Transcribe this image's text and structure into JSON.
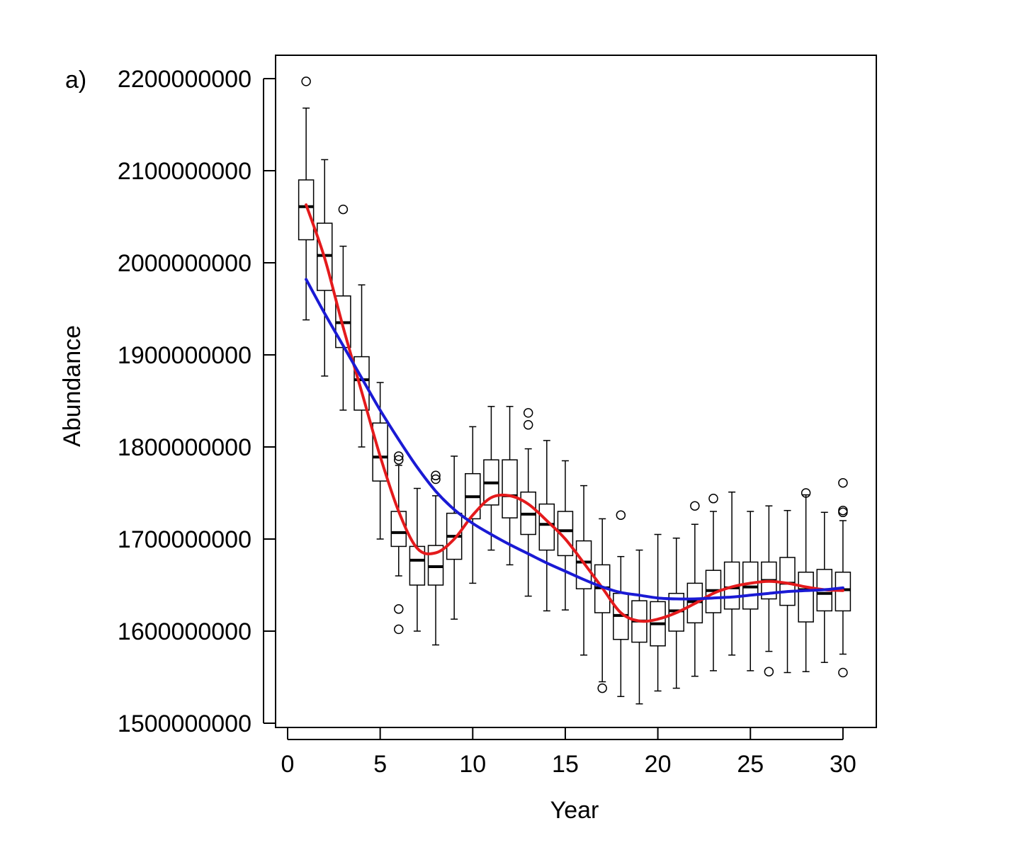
{
  "chart_data": {
    "type": "boxplot",
    "panel_label": "a)",
    "xlabel": "Year",
    "ylabel": "Abundance",
    "xlim": [
      -0.5,
      31.7
    ],
    "ylim": [
      1500000000,
      2200000000
    ],
    "x_ticks": [
      0,
      5,
      10,
      15,
      20,
      25,
      30
    ],
    "x_tick_labels": [
      "0",
      "5",
      "10",
      "15",
      "20",
      "25",
      "30"
    ],
    "y_ticks": [
      1500000000,
      1600000000,
      1700000000,
      1800000000,
      1900000000,
      2000000000,
      2100000000,
      2200000000
    ],
    "y_tick_labels": [
      "1500000000",
      "1600000000",
      "1700000000",
      "1800000000",
      "1900000000",
      "2000000000",
      "2100000000",
      "2200000000"
    ],
    "grid": false,
    "legend": "none",
    "boxes": [
      {
        "x": 1,
        "whisker_low": 1938000000,
        "q1": 2025000000,
        "median": 2061000000,
        "q3": 2090000000,
        "whisker_high": 2168000000,
        "outliers": [
          2197000000
        ]
      },
      {
        "x": 2,
        "whisker_low": 1877000000,
        "q1": 1970000000,
        "median": 2008000000,
        "q3": 2043000000,
        "whisker_high": 2112000000,
        "outliers": []
      },
      {
        "x": 3,
        "whisker_low": 1840000000,
        "q1": 1908000000,
        "median": 1935000000,
        "q3": 1964000000,
        "whisker_high": 2018000000,
        "outliers": [
          2058000000
        ]
      },
      {
        "x": 4,
        "whisker_low": 1800000000,
        "q1": 1840000000,
        "median": 1873000000,
        "q3": 1898000000,
        "whisker_high": 1976000000,
        "outliers": []
      },
      {
        "x": 5,
        "whisker_low": 1700000000,
        "q1": 1763000000,
        "median": 1789000000,
        "q3": 1826000000,
        "whisker_high": 1870000000,
        "outliers": []
      },
      {
        "x": 6,
        "whisker_low": 1660000000,
        "q1": 1692000000,
        "median": 1707000000,
        "q3": 1730000000,
        "whisker_high": 1780000000,
        "outliers": [
          1790000000,
          1786000000,
          1624000000,
          1602000000
        ]
      },
      {
        "x": 7,
        "whisker_low": 1600000000,
        "q1": 1650000000,
        "median": 1677000000,
        "q3": 1692000000,
        "whisker_high": 1755000000,
        "outliers": []
      },
      {
        "x": 8,
        "whisker_low": 1585000000,
        "q1": 1650000000,
        "median": 1670000000,
        "q3": 1693000000,
        "whisker_high": 1747000000,
        "outliers": [
          1769000000,
          1765000000
        ]
      },
      {
        "x": 9,
        "whisker_low": 1613000000,
        "q1": 1678000000,
        "median": 1703000000,
        "q3": 1728000000,
        "whisker_high": 1790000000,
        "outliers": []
      },
      {
        "x": 10,
        "whisker_low": 1652000000,
        "q1": 1722000000,
        "median": 1746000000,
        "q3": 1771000000,
        "whisker_high": 1822000000,
        "outliers": []
      },
      {
        "x": 11,
        "whisker_low": 1688000000,
        "q1": 1737000000,
        "median": 1761000000,
        "q3": 1786000000,
        "whisker_high": 1844000000,
        "outliers": []
      },
      {
        "x": 12,
        "whisker_low": 1672000000,
        "q1": 1723000000,
        "median": 1747000000,
        "q3": 1786000000,
        "whisker_high": 1844000000,
        "outliers": []
      },
      {
        "x": 13,
        "whisker_low": 1638000000,
        "q1": 1705000000,
        "median": 1727000000,
        "q3": 1751000000,
        "whisker_high": 1798000000,
        "outliers": [
          1837000000,
          1824000000
        ]
      },
      {
        "x": 14,
        "whisker_low": 1622000000,
        "q1": 1688000000,
        "median": 1716000000,
        "q3": 1738000000,
        "whisker_high": 1807000000,
        "outliers": []
      },
      {
        "x": 15,
        "whisker_low": 1623000000,
        "q1": 1682000000,
        "median": 1709000000,
        "q3": 1730000000,
        "whisker_high": 1785000000,
        "outliers": []
      },
      {
        "x": 16,
        "whisker_low": 1574000000,
        "q1": 1646000000,
        "median": 1675000000,
        "q3": 1698000000,
        "whisker_high": 1758000000,
        "outliers": []
      },
      {
        "x": 17,
        "whisker_low": 1545000000,
        "q1": 1620000000,
        "median": 1647000000,
        "q3": 1672000000,
        "whisker_high": 1722000000,
        "outliers": [
          1538000000
        ]
      },
      {
        "x": 18,
        "whisker_low": 1529000000,
        "q1": 1591000000,
        "median": 1617000000,
        "q3": 1641000000,
        "whisker_high": 1681000000,
        "outliers": [
          1726000000
        ]
      },
      {
        "x": 19,
        "whisker_low": 1521000000,
        "q1": 1588000000,
        "median": 1611000000,
        "q3": 1633000000,
        "whisker_high": 1688000000,
        "outliers": []
      },
      {
        "x": 20,
        "whisker_low": 1535000000,
        "q1": 1584000000,
        "median": 1608000000,
        "q3": 1632000000,
        "whisker_high": 1705000000,
        "outliers": []
      },
      {
        "x": 21,
        "whisker_low": 1538000000,
        "q1": 1600000000,
        "median": 1622000000,
        "q3": 1641000000,
        "whisker_high": 1701000000,
        "outliers": []
      },
      {
        "x": 22,
        "whisker_low": 1551000000,
        "q1": 1609000000,
        "median": 1632000000,
        "q3": 1652000000,
        "whisker_high": 1716000000,
        "outliers": [
          1736000000
        ]
      },
      {
        "x": 23,
        "whisker_low": 1557000000,
        "q1": 1620000000,
        "median": 1644000000,
        "q3": 1666000000,
        "whisker_high": 1730000000,
        "outliers": [
          1744000000
        ]
      },
      {
        "x": 24,
        "whisker_low": 1574000000,
        "q1": 1624000000,
        "median": 1647000000,
        "q3": 1675000000,
        "whisker_high": 1751000000,
        "outliers": []
      },
      {
        "x": 25,
        "whisker_low": 1557000000,
        "q1": 1624000000,
        "median": 1648000000,
        "q3": 1675000000,
        "whisker_high": 1730000000,
        "outliers": []
      },
      {
        "x": 26,
        "whisker_low": 1578000000,
        "q1": 1635000000,
        "median": 1655000000,
        "q3": 1675000000,
        "whisker_high": 1736000000,
        "outliers": [
          1556000000
        ]
      },
      {
        "x": 27,
        "whisker_low": 1555000000,
        "q1": 1628000000,
        "median": 1652000000,
        "q3": 1680000000,
        "whisker_high": 1731000000,
        "outliers": []
      },
      {
        "x": 28,
        "whisker_low": 1556000000,
        "q1": 1610000000,
        "median": 1645000000,
        "q3": 1664000000,
        "whisker_high": 1748000000,
        "outliers": [
          1750000000
        ]
      },
      {
        "x": 29,
        "whisker_low": 1566000000,
        "q1": 1622000000,
        "median": 1641000000,
        "q3": 1667000000,
        "whisker_high": 1729000000,
        "outliers": []
      },
      {
        "x": 30,
        "whisker_low": 1575000000,
        "q1": 1622000000,
        "median": 1645000000,
        "q3": 1664000000,
        "whisker_high": 1720000000,
        "outliers": [
          1761000000,
          1731000000,
          1729000000,
          1555000000
        ]
      }
    ],
    "lines": [
      {
        "color": "#e41a1c",
        "points": [
          [
            1,
            2063000000
          ],
          [
            2,
            2005000000
          ],
          [
            3,
            1930000000
          ],
          [
            4,
            1860000000
          ],
          [
            5,
            1790000000
          ],
          [
            6,
            1730000000
          ],
          [
            7,
            1690000000
          ],
          [
            8,
            1685000000
          ],
          [
            9,
            1700000000
          ],
          [
            10,
            1726000000
          ],
          [
            11,
            1745000000
          ],
          [
            12,
            1747000000
          ],
          [
            13,
            1738000000
          ],
          [
            14,
            1720000000
          ],
          [
            15,
            1700000000
          ],
          [
            16,
            1674000000
          ],
          [
            17,
            1647000000
          ],
          [
            18,
            1620000000
          ],
          [
            19,
            1611000000
          ],
          [
            20,
            1613000000
          ],
          [
            21,
            1620000000
          ],
          [
            22,
            1630000000
          ],
          [
            23,
            1641000000
          ],
          [
            24,
            1648000000
          ],
          [
            25,
            1652000000
          ],
          [
            26,
            1654000000
          ],
          [
            27,
            1652000000
          ],
          [
            28,
            1648000000
          ],
          [
            29,
            1645000000
          ],
          [
            30,
            1644000000
          ]
        ]
      },
      {
        "color": "#1a1ad4",
        "points": [
          [
            1,
            1982000000
          ],
          [
            2,
            1945000000
          ],
          [
            3,
            1910000000
          ],
          [
            4,
            1875000000
          ],
          [
            5,
            1840000000
          ],
          [
            6,
            1808000000
          ],
          [
            7,
            1778000000
          ],
          [
            8,
            1752000000
          ],
          [
            9,
            1732000000
          ],
          [
            10,
            1717000000
          ],
          [
            11,
            1705000000
          ],
          [
            12,
            1694000000
          ],
          [
            13,
            1684000000
          ],
          [
            14,
            1674000000
          ],
          [
            15,
            1665000000
          ],
          [
            16,
            1656000000
          ],
          [
            17,
            1648000000
          ],
          [
            18,
            1642000000
          ],
          [
            19,
            1639000000
          ],
          [
            20,
            1636000000
          ],
          [
            21,
            1635000000
          ],
          [
            22,
            1635000000
          ],
          [
            23,
            1636000000
          ],
          [
            24,
            1637000000
          ],
          [
            25,
            1639000000
          ],
          [
            26,
            1641000000
          ],
          [
            27,
            1643000000
          ],
          [
            28,
            1644000000
          ],
          [
            29,
            1645000000
          ],
          [
            30,
            1647000000
          ]
        ]
      }
    ]
  }
}
